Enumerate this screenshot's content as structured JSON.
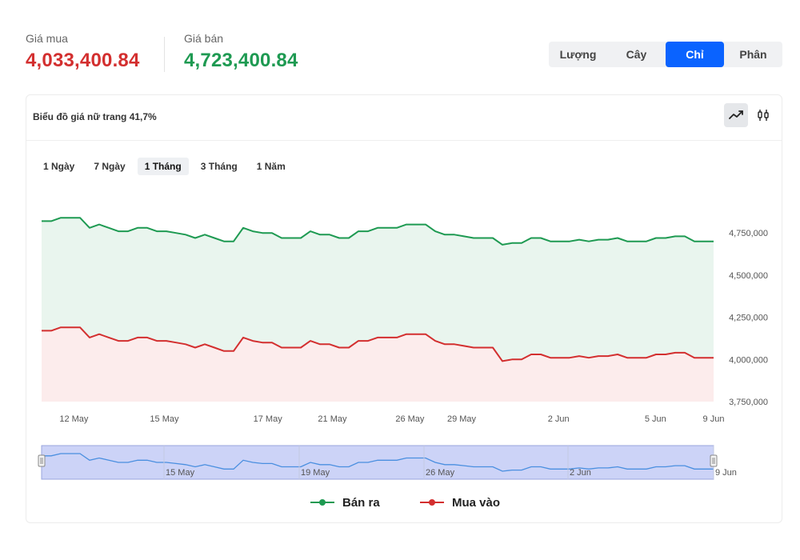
{
  "prices": {
    "buy_label": "Giá mua",
    "buy_value": "4,033,400.84",
    "sell_label": "Giá bán",
    "sell_value": "4,723,400.84"
  },
  "unit_tabs": [
    {
      "label": "Lượng",
      "active": false
    },
    {
      "label": "Cây",
      "active": false
    },
    {
      "label": "Chỉ",
      "active": true
    },
    {
      "label": "Phân",
      "active": false
    }
  ],
  "card": {
    "title": "Biểu đồ giá nữ trang 41,7%",
    "view_toggle": [
      {
        "icon": "line-chart-icon",
        "active": true
      },
      {
        "icon": "candlestick-icon",
        "active": false
      }
    ]
  },
  "range_tabs": [
    {
      "label": "1 Ngày",
      "active": false
    },
    {
      "label": "7 Ngày",
      "active": false
    },
    {
      "label": "1 Tháng",
      "active": true
    },
    {
      "label": "3 Tháng",
      "active": false
    },
    {
      "label": "1 Năm",
      "active": false
    }
  ],
  "colors": {
    "sell": "#1e9a52",
    "buy": "#d32f2f",
    "sell_fill": "#e9f5ee",
    "buy_fill": "#fcecec",
    "navigator_fill": "#ccd3f7",
    "accent": "#0a63ff"
  },
  "chart_data": {
    "type": "area",
    "x_tick_labels": [
      "12 May",
      "15 May",
      "17 May",
      "21 May",
      "26 May",
      "29 May",
      "2 Jun",
      "5 Jun",
      "9 Jun"
    ],
    "ylim": [
      3750000,
      4950000
    ],
    "y_ticks": [
      3750000,
      4000000,
      4250000,
      4500000,
      4750000
    ],
    "y_tick_labels": [
      "3,750,000",
      "4,000,000",
      "4,250,000",
      "4,500,000",
      "4,750,000"
    ],
    "series": [
      {
        "name": "Bán ra",
        "values": [
          4820000,
          4820000,
          4840000,
          4840000,
          4840000,
          4780000,
          4800000,
          4780000,
          4760000,
          4760000,
          4780000,
          4780000,
          4760000,
          4760000,
          4750000,
          4740000,
          4720000,
          4740000,
          4720000,
          4700000,
          4700000,
          4780000,
          4760000,
          4750000,
          4750000,
          4720000,
          4720000,
          4720000,
          4760000,
          4740000,
          4740000,
          4720000,
          4720000,
          4760000,
          4760000,
          4780000,
          4780000,
          4780000,
          4800000,
          4800000,
          4800000,
          4760000,
          4740000,
          4740000,
          4730000,
          4720000,
          4720000,
          4720000,
          4680000,
          4690000,
          4690000,
          4720000,
          4720000,
          4700000,
          4700000,
          4700000,
          4710000,
          4700000,
          4710000,
          4710000,
          4720000,
          4700000,
          4700000,
          4700000,
          4720000,
          4720000,
          4730000,
          4730000,
          4700000,
          4700000,
          4700000
        ]
      },
      {
        "name": "Mua vào",
        "values": [
          4170000,
          4170000,
          4190000,
          4190000,
          4190000,
          4130000,
          4150000,
          4130000,
          4110000,
          4110000,
          4130000,
          4130000,
          4110000,
          4110000,
          4100000,
          4090000,
          4070000,
          4090000,
          4070000,
          4050000,
          4050000,
          4130000,
          4110000,
          4100000,
          4100000,
          4070000,
          4070000,
          4070000,
          4110000,
          4090000,
          4090000,
          4070000,
          4070000,
          4110000,
          4110000,
          4130000,
          4130000,
          4130000,
          4150000,
          4150000,
          4150000,
          4110000,
          4090000,
          4090000,
          4080000,
          4070000,
          4070000,
          4070000,
          3990000,
          4000000,
          4000000,
          4030000,
          4030000,
          4010000,
          4010000,
          4010000,
          4020000,
          4010000,
          4020000,
          4020000,
          4030000,
          4010000,
          4010000,
          4010000,
          4030000,
          4030000,
          4040000,
          4040000,
          4010000,
          4010000,
          4010000
        ]
      }
    ],
    "navigator_tick_labels": [
      "15 May",
      "19 May",
      "26 May",
      "2 Jun",
      "9 Jun"
    ],
    "legend": [
      "Bán ra",
      "Mua vào"
    ],
    "legend_position": "bottom",
    "grid": false
  }
}
